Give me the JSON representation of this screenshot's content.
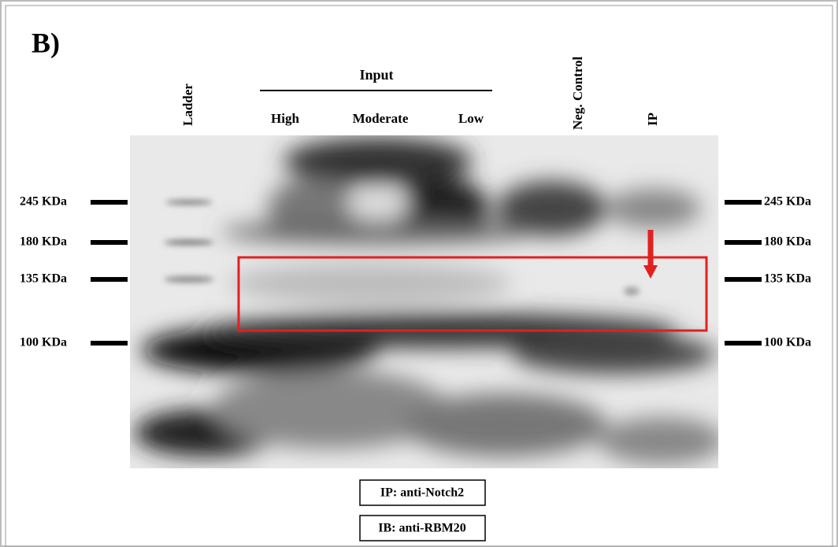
{
  "panel_label": "B)",
  "lanes": [
    "Ladder",
    "Neg. Control",
    "IP"
  ],
  "input_group": {
    "label": "Input",
    "lanes": [
      "High",
      "Moderate",
      "Low"
    ]
  },
  "markers_left": [
    "245 KDa",
    "180 KDa",
    "135 KDa",
    "100 KDa"
  ],
  "markers_right": [
    "245 KDa",
    "180 KDa",
    "135 KDa",
    "100 KDa"
  ],
  "captions": [
    "IP: anti-Notch2",
    "IB: anti-RBM20"
  ]
}
